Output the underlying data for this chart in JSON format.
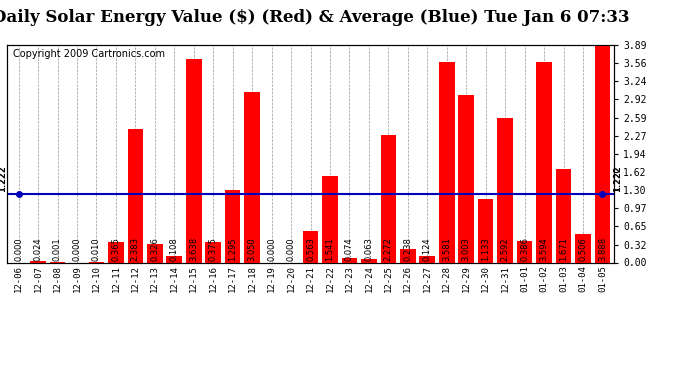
{
  "title": "Daily Solar Energy Value ($) (Red) & Average (Blue) Tue Jan 6 07:33",
  "copyright": "Copyright 2009 Cartronics.com",
  "average": 1.222,
  "average_label": "1.222",
  "categories": [
    "12-06",
    "12-07",
    "12-08",
    "12-09",
    "12-10",
    "12-11",
    "12-12",
    "12-13",
    "12-14",
    "12-15",
    "12-16",
    "12-17",
    "12-18",
    "12-19",
    "12-20",
    "12-21",
    "12-22",
    "12-23",
    "12-24",
    "12-25",
    "12-26",
    "12-27",
    "12-28",
    "12-29",
    "12-30",
    "12-31",
    "01-01",
    "01-02",
    "01-03",
    "01-04",
    "01-05"
  ],
  "values": [
    0.0,
    0.024,
    0.001,
    0.0,
    0.01,
    0.365,
    2.383,
    0.326,
    0.108,
    3.638,
    0.375,
    1.295,
    3.05,
    0.0,
    0.0,
    0.563,
    1.541,
    0.074,
    0.063,
    2.272,
    0.238,
    0.124,
    3.581,
    3.003,
    1.133,
    2.592,
    0.386,
    3.594,
    1.671,
    0.506,
    3.888
  ],
  "bar_color": "#ff0000",
  "avg_line_color": "#0000bb",
  "background_color": "#ffffff",
  "grid_color": "#999999",
  "ylim": [
    0.0,
    3.89
  ],
  "yticks_right": [
    0.0,
    0.32,
    0.65,
    0.97,
    1.3,
    1.62,
    1.94,
    2.27,
    2.59,
    2.92,
    3.24,
    3.56,
    3.89
  ],
  "title_fontsize": 12,
  "copyright_fontsize": 7,
  "val_fontsize": 6,
  "tick_fontsize": 7,
  "xtick_fontsize": 6.5,
  "bar_width": 0.8
}
